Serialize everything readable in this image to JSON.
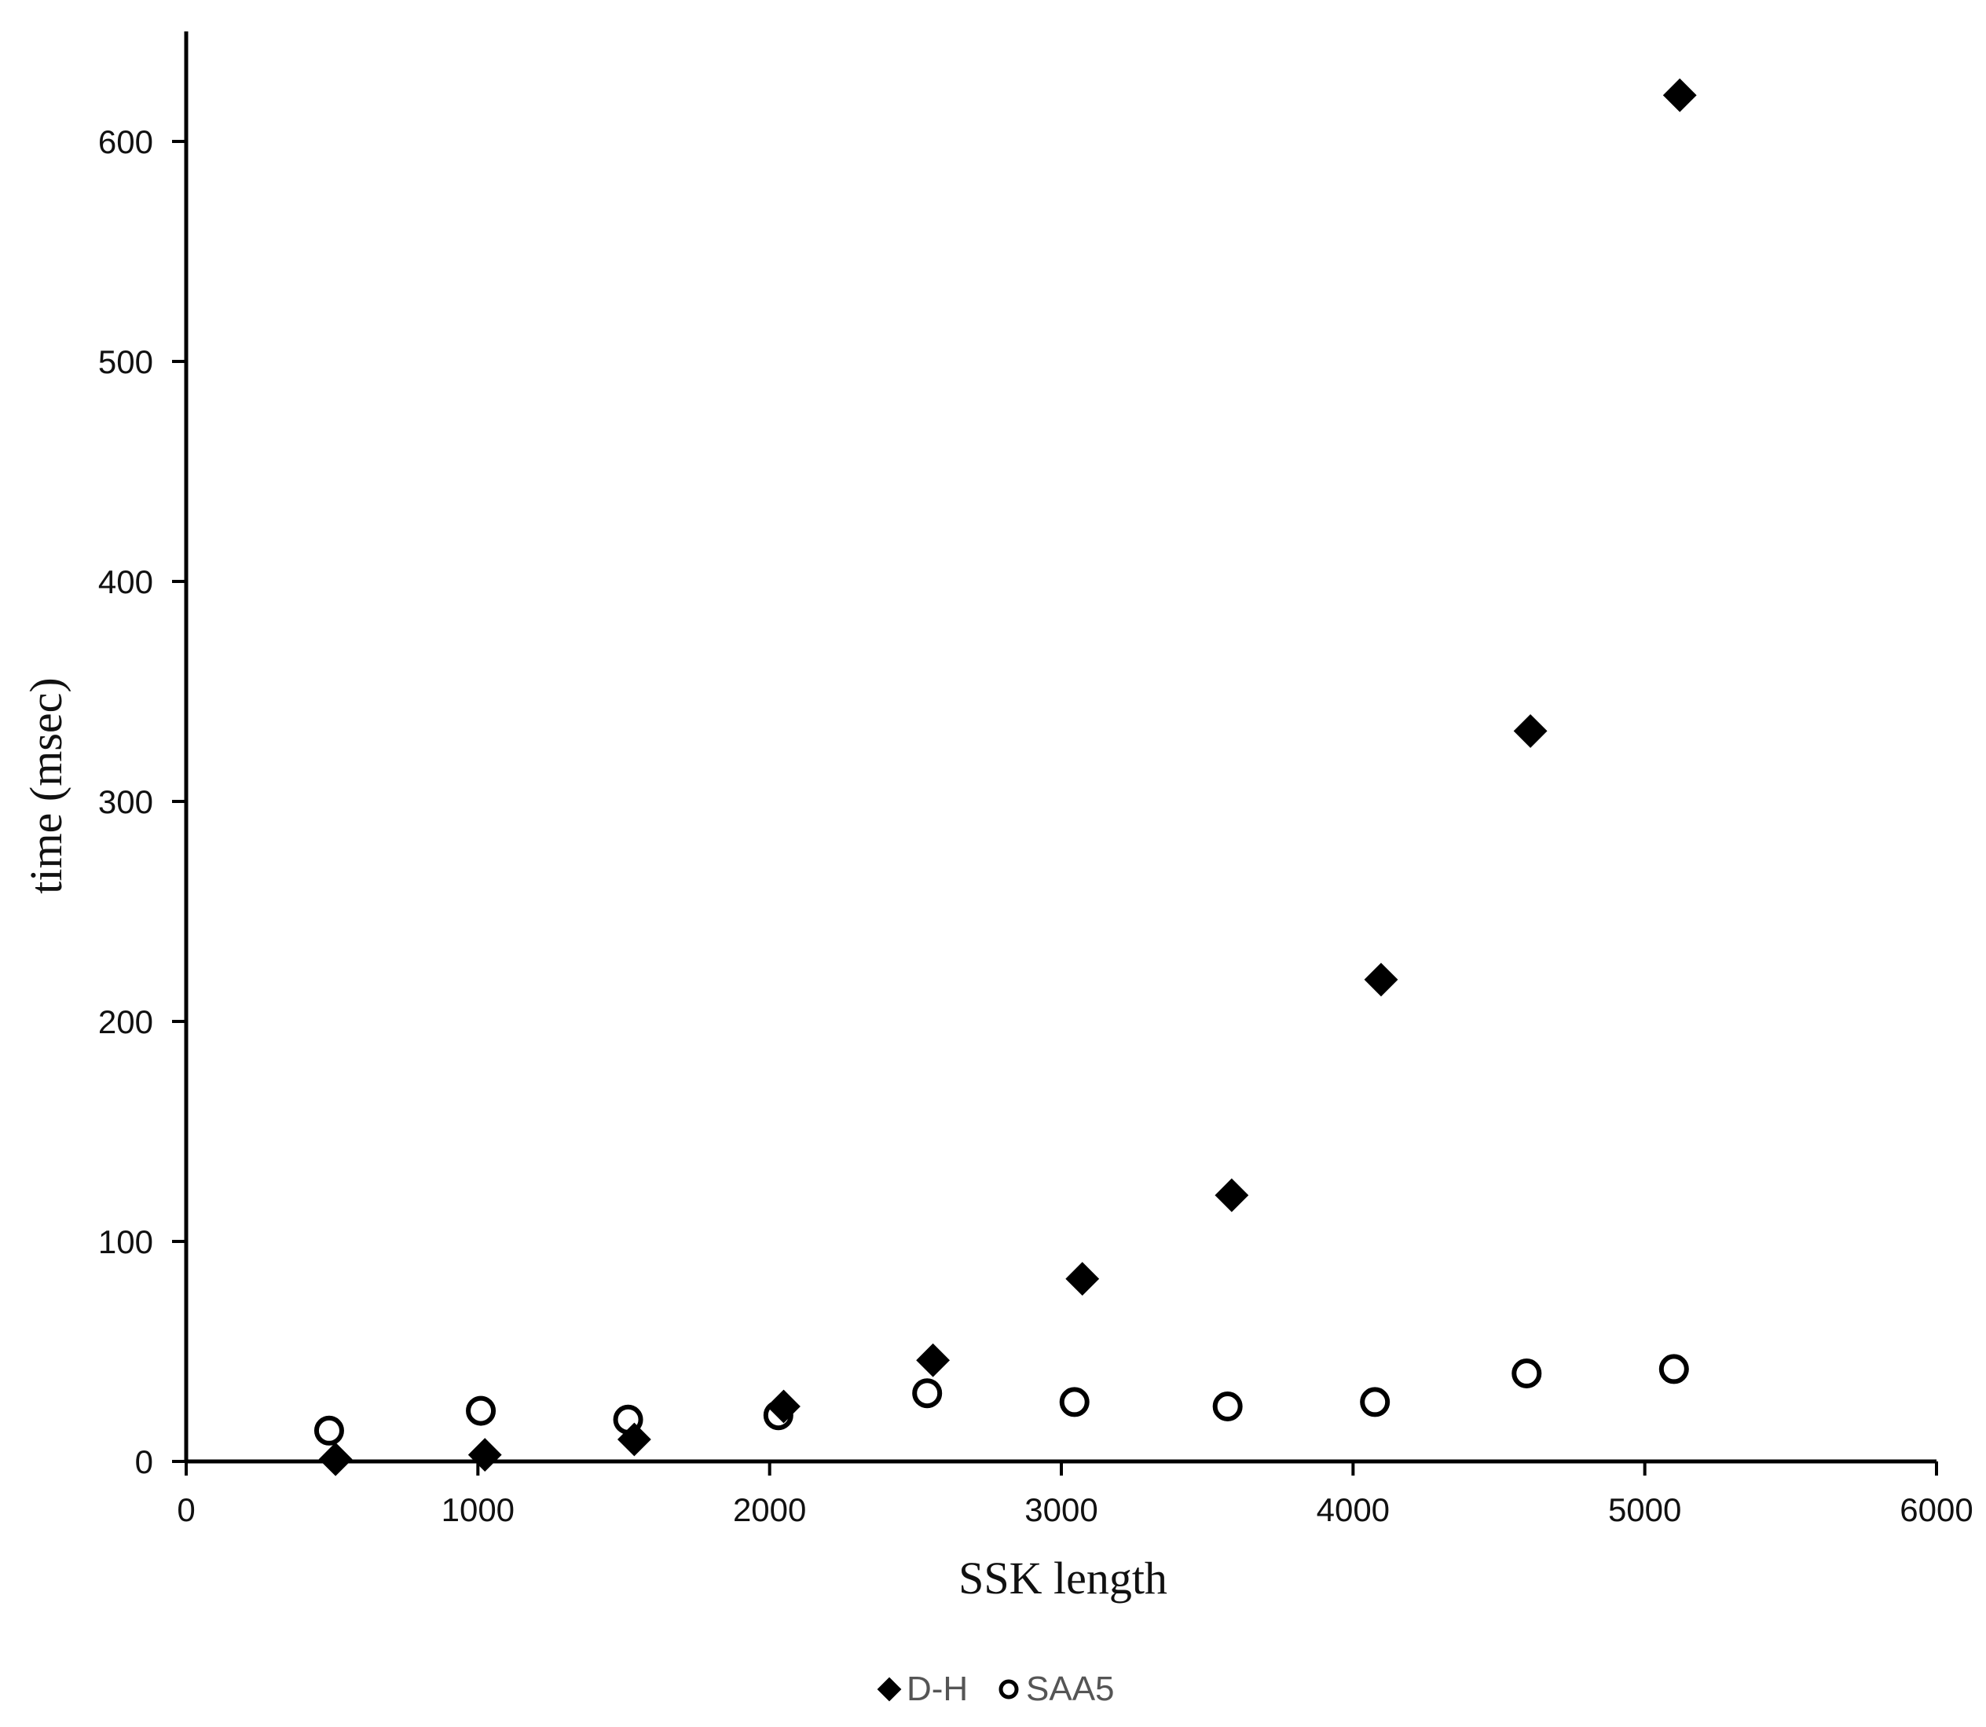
{
  "chart_data": {
    "type": "scatter",
    "title": "",
    "xlabel": "SSK length",
    "ylabel": "time (msec)",
    "xlim": [
      0,
      6000
    ],
    "ylim": [
      0,
      650
    ],
    "xticks": [
      0,
      1000,
      2000,
      3000,
      4000,
      5000,
      6000
    ],
    "yticks": [
      0,
      100,
      200,
      300,
      400,
      500,
      600
    ],
    "grid": false,
    "legend_position": "bottom-center",
    "series": [
      {
        "name": "D-H",
        "marker": "diamond-filled",
        "color": "#000000",
        "points": [
          {
            "x": 512,
            "y": 1
          },
          {
            "x": 1024,
            "y": 3
          },
          {
            "x": 1536,
            "y": 10
          },
          {
            "x": 2048,
            "y": 25
          },
          {
            "x": 2560,
            "y": 46
          },
          {
            "x": 3072,
            "y": 83
          },
          {
            "x": 3584,
            "y": 121
          },
          {
            "x": 4096,
            "y": 219
          },
          {
            "x": 4608,
            "y": 332
          },
          {
            "x": 5120,
            "y": 621
          }
        ]
      },
      {
        "name": "SAA5",
        "marker": "circle-open",
        "color": "#000000",
        "points": [
          {
            "x": 490,
            "y": 14
          },
          {
            "x": 1010,
            "y": 23
          },
          {
            "x": 1515,
            "y": 19
          },
          {
            "x": 2030,
            "y": 21
          },
          {
            "x": 2540,
            "y": 31
          },
          {
            "x": 3045,
            "y": 27
          },
          {
            "x": 3570,
            "y": 25
          },
          {
            "x": 4075,
            "y": 27
          },
          {
            "x": 4595,
            "y": 40
          },
          {
            "x": 5100,
            "y": 42
          }
        ]
      }
    ]
  }
}
